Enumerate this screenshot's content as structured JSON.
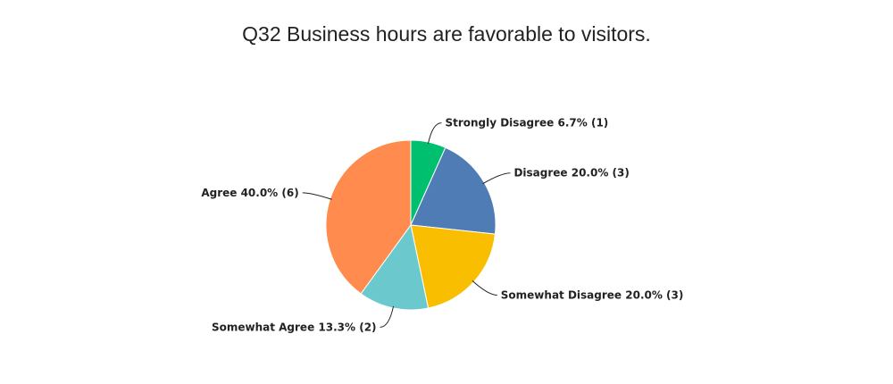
{
  "chart_data": {
    "type": "pie",
    "title": "Q32 Business hours are favorable to visitors.",
    "categories": [
      "Strongly Disagree",
      "Disagree",
      "Somewhat Disagree",
      "Somewhat Agree",
      "Agree"
    ],
    "values": [
      6.7,
      20.0,
      20.0,
      13.3,
      40.0
    ],
    "value_labels": [
      "6.7% (1)",
      "20.0% (3)",
      "20.0% (3)",
      "13.3% (2)",
      "40.0% (6)"
    ],
    "colors": [
      "#00bf6f",
      "#507cb6",
      "#f9be00",
      "#6bc8cd",
      "#ff8b4f"
    ]
  }
}
